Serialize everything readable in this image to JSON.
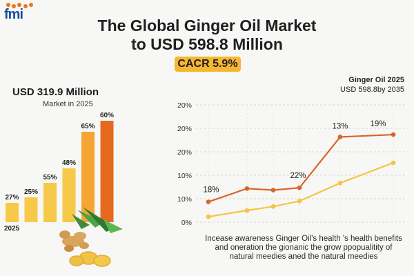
{
  "logo": {
    "text": "fmi"
  },
  "header": {
    "title_line1": "The Global Ginger Oil Market",
    "title_line2": "to USD 598.8 Million",
    "cagr_badge": "CACR 5.9%"
  },
  "left_panel": {
    "value_label": "USD 319.9 Million",
    "sub_label": "Market in 2025"
  },
  "right_panel": {
    "note_line1": "Ginger Oil 2025",
    "note_line2": "USD 598.8by 2035"
  },
  "footer": {
    "line1": "Incease awareness Ginger Oil's health 's health benefits",
    "line2": "and oneration the gionanic the grow ppopualitity of",
    "line3": "natural meedies aned the natural meedies"
  },
  "colors": {
    "bar_light": "#f7c948",
    "bar_mid": "#f4a533",
    "bar_dark": "#e66a1e",
    "line_dark": "#d9642a",
    "line_light": "#f5c542",
    "cagr_bg": "#f5b733"
  },
  "chart_data": [
    {
      "type": "bar",
      "categories": [
        "",
        "",
        "",
        "",
        "",
        ""
      ],
      "values": [
        27,
        25,
        55,
        48,
        65,
        60
      ],
      "data_labels": [
        "27%",
        "25%",
        "55%",
        "48%",
        "65%",
        "60%"
      ],
      "first_category_label": "2025",
      "title": "",
      "xlabel": "",
      "ylabel": ""
    },
    {
      "type": "line",
      "x": [
        1,
        2,
        3,
        4,
        5,
        6
      ],
      "series": [
        {
          "values": [
            2.6,
            4.3,
            4.1,
            4.4,
            10.9,
            11.2
          ]
        },
        {
          "values": [
            0.7,
            1.5,
            2.0,
            2.7,
            5.0,
            7.6
          ]
        }
      ],
      "y_ticks": [
        "0%",
        "10%",
        "10%",
        "20%",
        "20%",
        "20%"
      ],
      "ylim": [
        0,
        15
      ],
      "annotations": [
        {
          "text": "18%",
          "x": 1,
          "y": 2.6
        },
        {
          "text": "22%",
          "x": 4,
          "y": 4.4
        },
        {
          "text": "13%",
          "x": 5,
          "y": 10.9
        },
        {
          "text": "19%",
          "x": 6,
          "y": 11.2
        }
      ],
      "grid": true
    }
  ]
}
